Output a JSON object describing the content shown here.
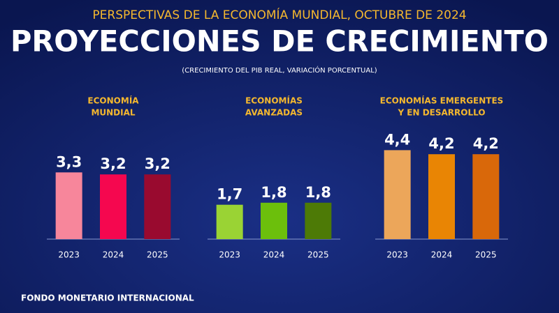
{
  "header": {
    "subtitle": "PERSPECTIVAS DE LA ECONOMÍA MUNDIAL, OCTUBRE DE 2024",
    "title": "PROYECCIONES DE CRECIMIENTO",
    "note": "(CRECIMIENTO DEL PIB REAL, VARIACIÓN PORCENTUAL)"
  },
  "chart_data": [
    {
      "type": "bar",
      "title": [
        "ECONOMÍA",
        "MUNDIAL"
      ],
      "categories": [
        "2023",
        "2024",
        "2025"
      ],
      "values": [
        3.3,
        3.2,
        3.2
      ],
      "value_labels": [
        "3,3",
        "3,2",
        "3,2"
      ],
      "colors": [
        "#f7869b",
        "#f5074f",
        "#990a2f"
      ]
    },
    {
      "type": "bar",
      "title": [
        "ECONOMÍAS",
        "AVANZADAS"
      ],
      "categories": [
        "2023",
        "2024",
        "2025"
      ],
      "values": [
        1.7,
        1.8,
        1.8
      ],
      "value_labels": [
        "1,7",
        "1,8",
        "1,8"
      ],
      "colors": [
        "#9ad334",
        "#6cbf0c",
        "#4d7a06"
      ]
    },
    {
      "type": "bar",
      "title": [
        "ECONOMÍAS EMERGENTES",
        "Y EN DESARROLLO"
      ],
      "categories": [
        "2023",
        "2024",
        "2025"
      ],
      "values": [
        4.4,
        4.2,
        4.2
      ],
      "value_labels": [
        "4,4",
        "4,2",
        "4,2"
      ],
      "colors": [
        "#eca65a",
        "#e98504",
        "#d9680a"
      ]
    }
  ],
  "footer": "FONDO MONETARIO INTERNACIONAL"
}
